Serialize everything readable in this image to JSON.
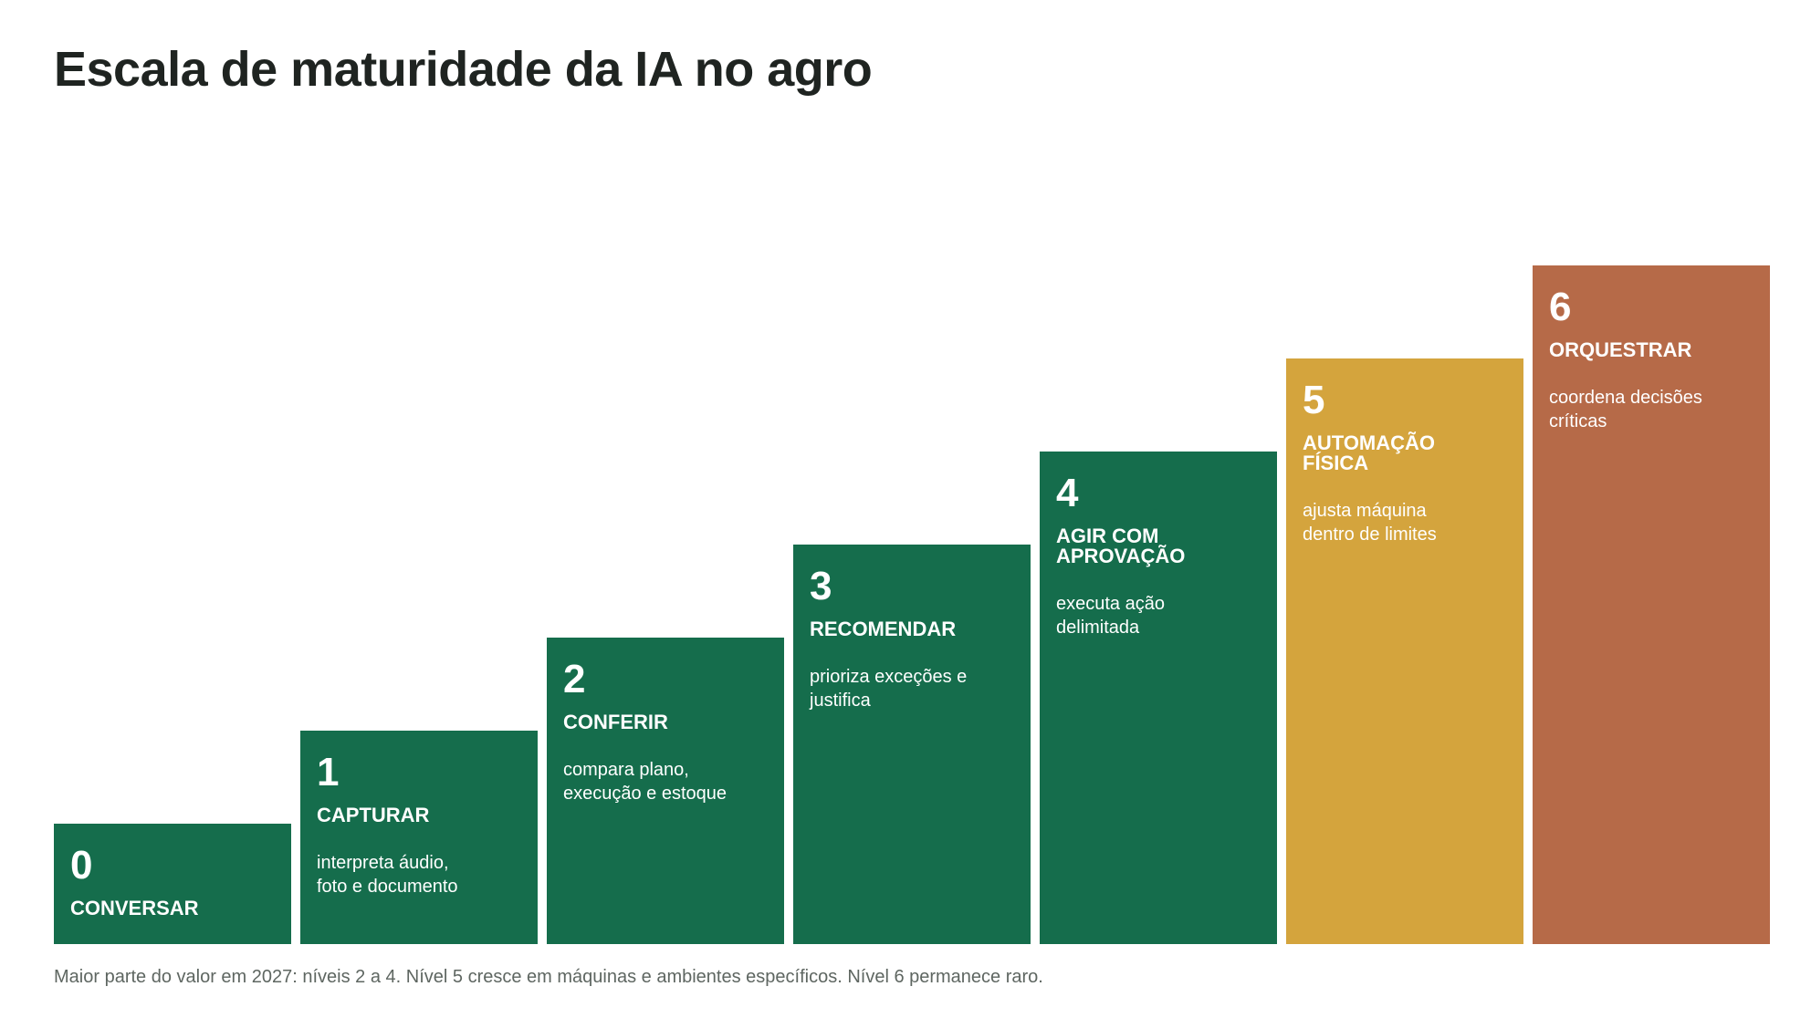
{
  "title": "Escala de maturidade da IA no agro",
  "steps": [
    {
      "level": "0",
      "name": "CONVERSAR",
      "description": "",
      "color": "#156d4c"
    },
    {
      "level": "1",
      "name": "CAPTURAR",
      "description": "interpreta áudio, foto e documento",
      "color": "#156d4c"
    },
    {
      "level": "2",
      "name": "CONFERIR",
      "description": "compara plano, execução e estoque",
      "color": "#156d4c"
    },
    {
      "level": "3",
      "name": "RECOMENDAR",
      "description": "prioriza exceções e justifica",
      "color": "#156d4c"
    },
    {
      "level": "4",
      "name": "AGIR COM APROVAÇÃO",
      "description": "executa ação delimitada",
      "color": "#156d4c"
    },
    {
      "level": "5",
      "name": "AUTOMAÇÃO FÍSICA",
      "description": "ajusta máquina dentro de limites",
      "color": "#d4a43d"
    },
    {
      "level": "6",
      "name": "ORQUESTRAR",
      "description": "coordena decisões críticas",
      "color": "#b66a48"
    }
  ],
  "footnote": "Maior parte do valor em 2027: níveis 2 a 4. Nível 5 cresce em máquinas e ambientes específicos. Nível 6 permanece raro."
}
